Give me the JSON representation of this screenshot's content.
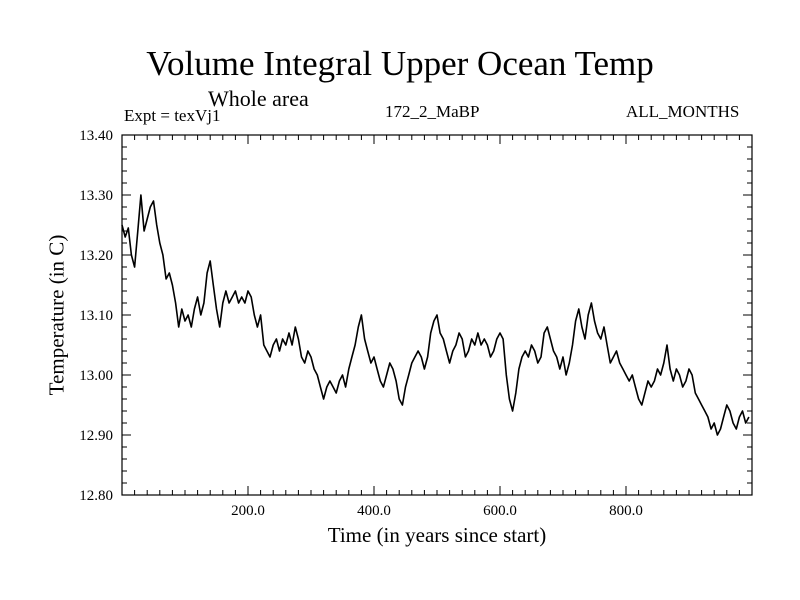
{
  "chart_data": {
    "type": "line",
    "title": "Volume Integral Upper Ocean Temp",
    "subtitle": "Whole area",
    "experiment_label": "Expt = texVj1",
    "case_label": "172_2_MaBP",
    "period_label": "ALL_MONTHS",
    "xlabel": "Time (in years since start)",
    "ylabel": "Temperature (in C)",
    "xlim": [
      0,
      1000
    ],
    "ylim": [
      12.8,
      13.4
    ],
    "x_ticks": [
      {
        "value": 200,
        "label": "200.0"
      },
      {
        "value": 400,
        "label": "400.0"
      },
      {
        "value": 600,
        "label": "600.0"
      },
      {
        "value": 800,
        "label": "800.0"
      }
    ],
    "y_ticks": [
      {
        "value": 12.8,
        "label": "12.80"
      },
      {
        "value": 12.9,
        "label": "12.90"
      },
      {
        "value": 13.0,
        "label": "13.00"
      },
      {
        "value": 13.1,
        "label": "13.10"
      },
      {
        "value": 13.2,
        "label": "13.20"
      },
      {
        "value": 13.3,
        "label": "13.30"
      },
      {
        "value": 13.4,
        "label": "13.40"
      }
    ],
    "grid": false,
    "series": [
      {
        "name": "Temperature",
        "color": "#000000",
        "x": [
          0,
          5,
          10,
          15,
          20,
          25,
          30,
          35,
          40,
          45,
          50,
          55,
          60,
          65,
          70,
          75,
          80,
          85,
          90,
          95,
          100,
          105,
          110,
          115,
          120,
          125,
          130,
          135,
          140,
          145,
          150,
          155,
          160,
          165,
          170,
          175,
          180,
          185,
          190,
          195,
          200,
          205,
          210,
          215,
          220,
          225,
          230,
          235,
          240,
          245,
          250,
          255,
          260,
          265,
          270,
          275,
          280,
          285,
          290,
          295,
          300,
          305,
          310,
          315,
          320,
          325,
          330,
          335,
          340,
          345,
          350,
          355,
          360,
          365,
          370,
          375,
          380,
          385,
          390,
          395,
          400,
          405,
          410,
          415,
          420,
          425,
          430,
          435,
          440,
          445,
          450,
          455,
          460,
          465,
          470,
          475,
          480,
          485,
          490,
          495,
          500,
          505,
          510,
          515,
          520,
          525,
          530,
          535,
          540,
          545,
          550,
          555,
          560,
          565,
          570,
          575,
          580,
          585,
          590,
          595,
          600,
          605,
          610,
          615,
          620,
          625,
          630,
          635,
          640,
          645,
          650,
          655,
          660,
          665,
          670,
          675,
          680,
          685,
          690,
          695,
          700,
          705,
          710,
          715,
          720,
          725,
          730,
          735,
          740,
          745,
          750,
          755,
          760,
          765,
          770,
          775,
          780,
          785,
          790,
          795,
          800,
          805,
          810,
          815,
          820,
          825,
          830,
          835,
          840,
          845,
          850,
          855,
          860,
          865,
          870,
          875,
          880,
          885,
          890,
          895,
          900,
          905,
          910,
          915,
          920,
          925,
          930,
          935,
          940,
          945,
          950,
          955,
          960,
          965,
          970,
          975,
          980,
          985,
          990,
          995
        ],
        "values": [
          13.25,
          13.23,
          13.245,
          13.2,
          13.18,
          13.24,
          13.3,
          13.24,
          13.26,
          13.28,
          13.29,
          13.25,
          13.22,
          13.2,
          13.16,
          13.17,
          13.15,
          13.12,
          13.08,
          13.11,
          13.09,
          13.1,
          13.08,
          13.11,
          13.13,
          13.1,
          13.12,
          13.17,
          13.19,
          13.15,
          13.11,
          13.08,
          13.12,
          13.14,
          13.12,
          13.13,
          13.14,
          13.12,
          13.13,
          13.12,
          13.14,
          13.13,
          13.1,
          13.08,
          13.1,
          13.05,
          13.04,
          13.03,
          13.05,
          13.06,
          13.04,
          13.06,
          13.05,
          13.07,
          13.05,
          13.08,
          13.06,
          13.03,
          13.02,
          13.04,
          13.03,
          13.01,
          13.0,
          12.98,
          12.96,
          12.98,
          12.99,
          12.98,
          12.97,
          12.99,
          13.0,
          12.98,
          13.01,
          13.03,
          13.05,
          13.08,
          13.1,
          13.06,
          13.04,
          13.02,
          13.03,
          13.01,
          12.99,
          12.98,
          13.0,
          13.02,
          13.01,
          12.99,
          12.96,
          12.95,
          12.98,
          13.0,
          13.02,
          13.03,
          13.04,
          13.03,
          13.01,
          13.03,
          13.07,
          13.09,
          13.1,
          13.07,
          13.06,
          13.04,
          13.02,
          13.04,
          13.05,
          13.07,
          13.06,
          13.03,
          13.04,
          13.06,
          13.05,
          13.07,
          13.05,
          13.06,
          13.05,
          13.03,
          13.04,
          13.06,
          13.07,
          13.06,
          13.0,
          12.96,
          12.94,
          12.97,
          13.01,
          13.03,
          13.04,
          13.03,
          13.05,
          13.04,
          13.02,
          13.03,
          13.07,
          13.08,
          13.06,
          13.04,
          13.03,
          13.01,
          13.03,
          13.0,
          13.02,
          13.05,
          13.09,
          13.11,
          13.08,
          13.06,
          13.1,
          13.12,
          13.09,
          13.07,
          13.06,
          13.08,
          13.05,
          13.02,
          13.03,
          13.04,
          13.02,
          13.01,
          13.0,
          12.99,
          13.0,
          12.98,
          12.96,
          12.95,
          12.97,
          12.99,
          12.98,
          12.99,
          13.01,
          13.0,
          13.02,
          13.05,
          13.01,
          12.99,
          13.01,
          13.0,
          12.98,
          12.99,
          13.01,
          13.0,
          12.97,
          12.96,
          12.95,
          12.94,
          12.93,
          12.91,
          12.92,
          12.9,
          12.91,
          12.93,
          12.95,
          12.94,
          12.92,
          12.91,
          12.93,
          12.94,
          12.92,
          12.93
        ]
      }
    ]
  }
}
